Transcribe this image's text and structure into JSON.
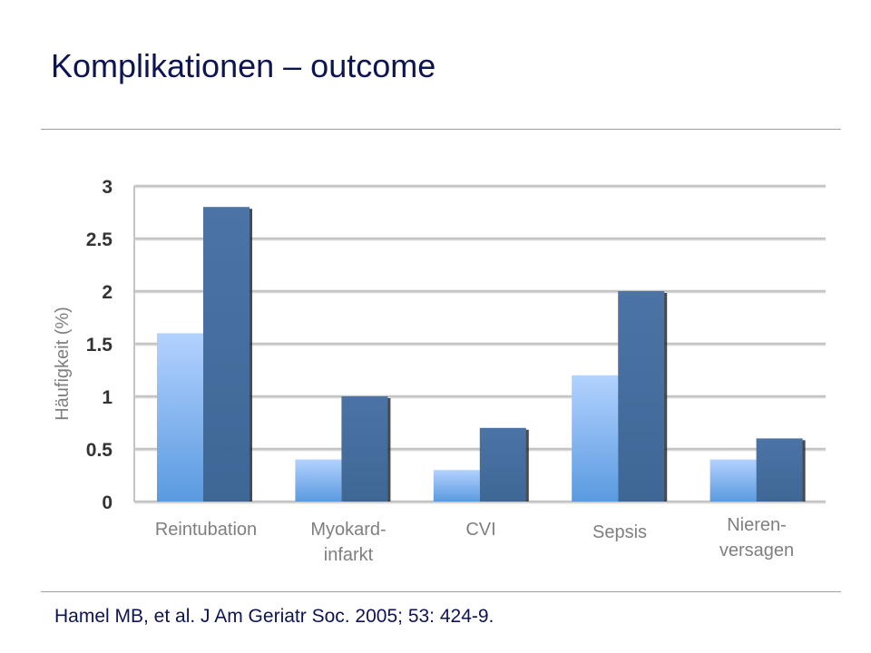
{
  "slide": {
    "title": "Komplikationen – outcome",
    "citation": "Hamel MB, et al. J Am Geriatr Soc. 2005; 53: 424-9."
  },
  "chart_data": {
    "type": "bar",
    "categories": [
      [
        "Reintubation"
      ],
      [
        "Myokard-",
        "infarkt"
      ],
      [
        "CVI"
      ],
      [
        "Sepsis"
      ],
      [
        "Nieren-",
        "versagen"
      ]
    ],
    "series": [
      {
        "values": [
          1.6,
          0.4,
          0.3,
          1.2,
          0.4
        ],
        "color": "#8fb8ee"
      },
      {
        "values": [
          2.8,
          1.0,
          0.7,
          2.0,
          0.6
        ],
        "color": "#4a72a2"
      }
    ],
    "ylabel": "Häufigkeit (%)",
    "ylim": [
      0,
      3
    ],
    "yticks": [
      "0",
      "0.5",
      "1",
      "1.5",
      "2",
      "2.5",
      "3"
    ],
    "grid": true,
    "legend": "none"
  }
}
